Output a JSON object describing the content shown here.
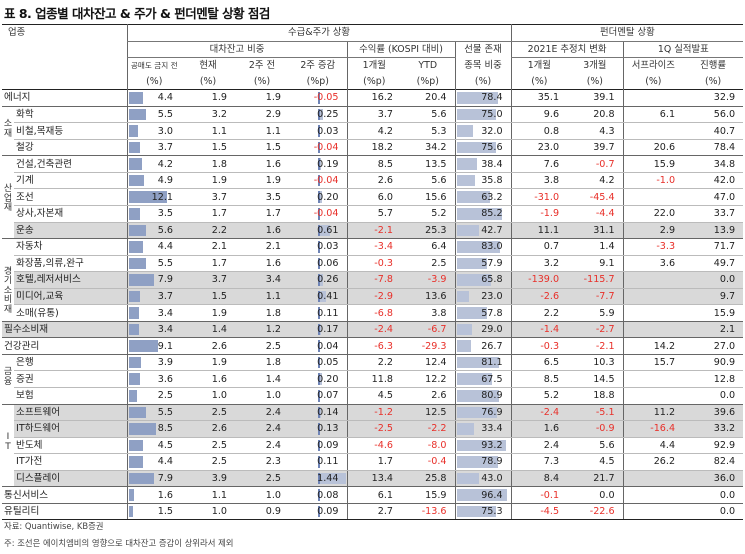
{
  "title": "표 8. 업종별 대차잔고 & 주가 & 펀더멘탈 상황 점검",
  "header": {
    "industry": "업종",
    "group_supply": "수급&주가 상황",
    "group_fund": "펀더멘탈 상황",
    "sub_balance": "대차잔고 비중",
    "sub_return": "수익률 (KOSPI 대비)",
    "sub_futures": "선물 존재",
    "sub_futures2": "종목 비중",
    "sub_eps": "2021E 추정치 변화",
    "sub_q1": "1Q 실적발표",
    "cols": [
      "공매도 금지 전",
      "현재",
      "2주 전",
      "2주 증감",
      "1개월",
      "YTD",
      "",
      "1개월",
      "3개월",
      "서프라이즈",
      "진행률"
    ],
    "units": [
      "(%)",
      "(%)",
      "(%)",
      "(%p)",
      "(%p)",
      "(%p)",
      "(%)",
      "(%)",
      "(%)",
      "(%)",
      "(%)"
    ]
  },
  "sections": [
    "소재",
    "산업재",
    "경기소비재",
    "금융",
    "IT"
  ],
  "rows": [
    {
      "name": "에너지",
      "vals": [
        "4.4",
        "1.9",
        "1.9",
        "-0.05",
        "16.2",
        "20.4",
        "78.4",
        "35.1",
        "39.1",
        "",
        "32.9"
      ]
    },
    {
      "name": "화학",
      "vals": [
        "5.5",
        "3.2",
        "2.9",
        "0.25",
        "3.7",
        "5.6",
        "75.0",
        "9.6",
        "20.8",
        "6.1",
        "56.0"
      ]
    },
    {
      "name": "비철,목재등",
      "vals": [
        "3.0",
        "1.1",
        "1.1",
        "0.03",
        "4.2",
        "5.3",
        "32.0",
        "0.8",
        "4.3",
        "",
        "40.7"
      ]
    },
    {
      "name": "철강",
      "vals": [
        "3.7",
        "1.5",
        "1.5",
        "-0.04",
        "18.2",
        "34.2",
        "75.6",
        "23.0",
        "39.7",
        "20.6",
        "78.4"
      ]
    },
    {
      "name": "건설,건축관련",
      "vals": [
        "4.2",
        "1.8",
        "1.6",
        "0.19",
        "8.5",
        "13.5",
        "38.4",
        "7.6",
        "-0.7",
        "15.9",
        "34.8"
      ]
    },
    {
      "name": "기계",
      "vals": [
        "4.9",
        "1.9",
        "1.9",
        "-0.04",
        "2.6",
        "5.6",
        "35.8",
        "3.8",
        "4.2",
        "-1.0",
        "42.0"
      ]
    },
    {
      "name": "조선",
      "vals": [
        "12.1",
        "3.7",
        "3.5",
        "0.20",
        "6.0",
        "15.6",
        "63.2",
        "-31.0",
        "-45.4",
        "",
        "47.0"
      ]
    },
    {
      "name": "상사,자본재",
      "vals": [
        "3.5",
        "1.7",
        "1.7",
        "-0.04",
        "5.7",
        "5.2",
        "85.2",
        "-1.9",
        "-4.4",
        "22.0",
        "33.7"
      ]
    },
    {
      "name": "운송",
      "vals": [
        "5.6",
        "2.2",
        "1.6",
        "0.61",
        "-2.1",
        "25.3",
        "42.7",
        "11.1",
        "31.1",
        "2.9",
        "13.9"
      ]
    },
    {
      "name": "자동차",
      "vals": [
        "4.4",
        "2.1",
        "2.1",
        "0.03",
        "-3.4",
        "6.4",
        "83.0",
        "0.7",
        "1.4",
        "-3.3",
        "71.7"
      ]
    },
    {
      "name": "화장품,의류,완구",
      "vals": [
        "5.5",
        "1.7",
        "1.6",
        "0.06",
        "-0.3",
        "2.5",
        "57.9",
        "3.2",
        "9.1",
        "3.6",
        "49.7"
      ]
    },
    {
      "name": "호텔,레저서비스",
      "vals": [
        "7.9",
        "3.7",
        "3.4",
        "0.26",
        "-7.8",
        "-3.9",
        "65.8",
        "-139.0",
        "-115.7",
        "",
        "0.0"
      ]
    },
    {
      "name": "미디어,교육",
      "vals": [
        "3.7",
        "1.5",
        "1.1",
        "0.41",
        "-2.9",
        "13.6",
        "23.0",
        "-2.6",
        "-7.7",
        "",
        "9.7"
      ]
    },
    {
      "name": "소매(유통)",
      "vals": [
        "3.4",
        "1.9",
        "1.8",
        "0.11",
        "-6.8",
        "3.8",
        "57.8",
        "2.2",
        "5.9",
        "",
        "15.9"
      ]
    },
    {
      "name": "필수소비재",
      "vals": [
        "3.4",
        "1.4",
        "1.2",
        "0.17",
        "-2.4",
        "-6.7",
        "29.0",
        "-1.4",
        "-2.7",
        "",
        "2.1"
      ]
    },
    {
      "name": "건강관리",
      "vals": [
        "9.1",
        "2.6",
        "2.5",
        "0.04",
        "-6.3",
        "-29.3",
        "26.7",
        "-0.3",
        "-2.1",
        "14.2",
        "27.0"
      ]
    },
    {
      "name": "은행",
      "vals": [
        "3.9",
        "1.9",
        "1.8",
        "0.05",
        "2.2",
        "12.4",
        "81.1",
        "6.5",
        "10.3",
        "15.7",
        "90.9"
      ]
    },
    {
      "name": "증권",
      "vals": [
        "3.6",
        "1.6",
        "1.4",
        "0.20",
        "11.8",
        "12.2",
        "67.5",
        "8.5",
        "14.5",
        "",
        "12.8"
      ]
    },
    {
      "name": "보험",
      "vals": [
        "2.5",
        "1.0",
        "1.0",
        "0.07",
        "4.5",
        "2.6",
        "80.9",
        "5.2",
        "18.8",
        "",
        "0.0"
      ]
    },
    {
      "name": "소프트웨어",
      "vals": [
        "5.5",
        "2.5",
        "2.4",
        "0.14",
        "-1.2",
        "12.5",
        "76.9",
        "-2.4",
        "-5.1",
        "11.2",
        "39.6"
      ]
    },
    {
      "name": "IT하드웨어",
      "vals": [
        "8.5",
        "2.6",
        "2.4",
        "0.13",
        "-2.5",
        "-2.2",
        "33.4",
        "1.6",
        "-0.9",
        "-16.4",
        "33.2"
      ]
    },
    {
      "name": "반도체",
      "vals": [
        "4.5",
        "2.5",
        "2.4",
        "0.09",
        "-4.6",
        "-8.0",
        "93.2",
        "2.4",
        "5.6",
        "4.4",
        "92.9"
      ]
    },
    {
      "name": "IT가전",
      "vals": [
        "4.4",
        "2.5",
        "2.3",
        "0.11",
        "1.7",
        "-0.4",
        "78.9",
        "7.3",
        "4.5",
        "26.2",
        "82.4"
      ]
    },
    {
      "name": "디스플레이",
      "vals": [
        "7.9",
        "3.9",
        "2.5",
        "1.44",
        "13.4",
        "25.8",
        "43.0",
        "8.4",
        "21.7",
        "",
        "36.0"
      ]
    },
    {
      "name": "통신서비스",
      "vals": [
        "1.6",
        "1.1",
        "1.0",
        "0.08",
        "6.1",
        "15.9",
        "96.4",
        "-0.1",
        "0.0",
        "",
        "0.0"
      ]
    },
    {
      "name": "유틸리티",
      "vals": [
        "1.5",
        "1.0",
        "0.9",
        "0.09",
        "2.7",
        "-13.6",
        "75.3",
        "-4.5",
        "-22.6",
        "",
        "0.0"
      ]
    }
  ],
  "footnotes": [
    "자료: Quantiwise, KB증권",
    "주: 조선은 에이치엠비의 영향으로 대차잔고 증감이 상위라서 제외"
  ],
  "colors": {
    "negative": "#e8302a",
    "bar": "#b8c2d8",
    "shade": "#d9d9d9"
  }
}
